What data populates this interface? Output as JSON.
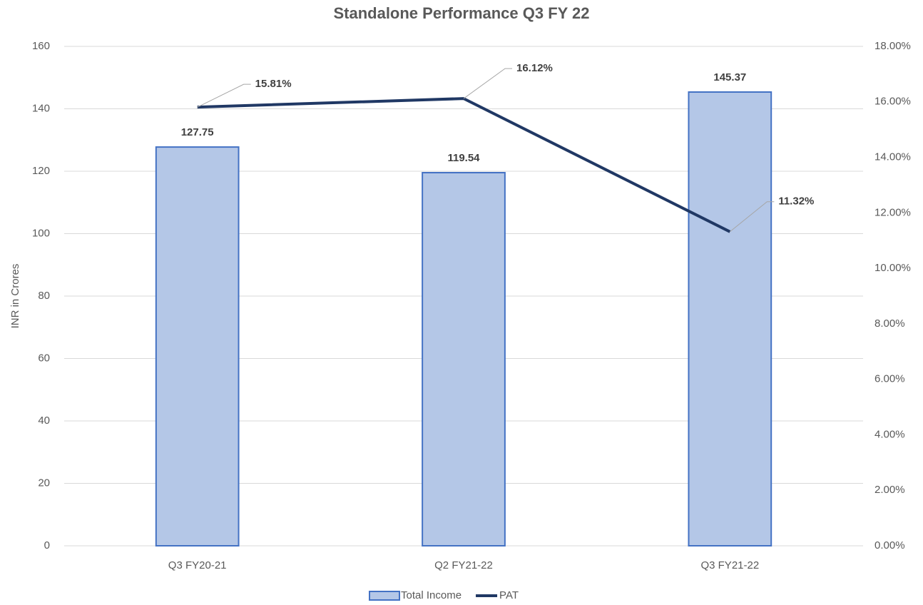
{
  "chart_data": {
    "type": "bar_line",
    "title": "Standalone Performance Q3 FY 22",
    "y_label": "INR in Crores",
    "categories": [
      "Q3 FY20-21",
      "Q2 FY21-22",
      "Q3 FY21-22"
    ],
    "series": [
      {
        "name": "Total Income",
        "type": "bar",
        "color": "#b4c7e7",
        "edge_color": "#4472c4",
        "values": [
          127.75,
          119.54,
          145.37
        ]
      },
      {
        "name": "PAT",
        "type": "line",
        "axis": "y2",
        "color": "#203864",
        "values": [
          15.81,
          16.12,
          11.32
        ],
        "value_labels": [
          "15.81%",
          "16.12%",
          "11.32%"
        ]
      }
    ],
    "ylim": [
      0,
      160
    ],
    "yticks": [
      0,
      20,
      40,
      60,
      80,
      100,
      120,
      140,
      160
    ],
    "y2lim": [
      0,
      18
    ],
    "y2ticks": [
      {
        "value": 0,
        "label": "0.00%"
      },
      {
        "value": 2,
        "label": "2.00%"
      },
      {
        "value": 4,
        "label": "4.00%"
      },
      {
        "value": 6,
        "label": "6.00%"
      },
      {
        "value": 8,
        "label": "8.00%"
      },
      {
        "value": 10,
        "label": "10.00%"
      },
      {
        "value": 12,
        "label": "12.00%"
      },
      {
        "value": 14,
        "label": "14.00%"
      },
      {
        "value": 16,
        "label": "16.00%"
      },
      {
        "value": 18,
        "label": "18.00%"
      }
    ],
    "grid": true,
    "legend": "bottom"
  }
}
